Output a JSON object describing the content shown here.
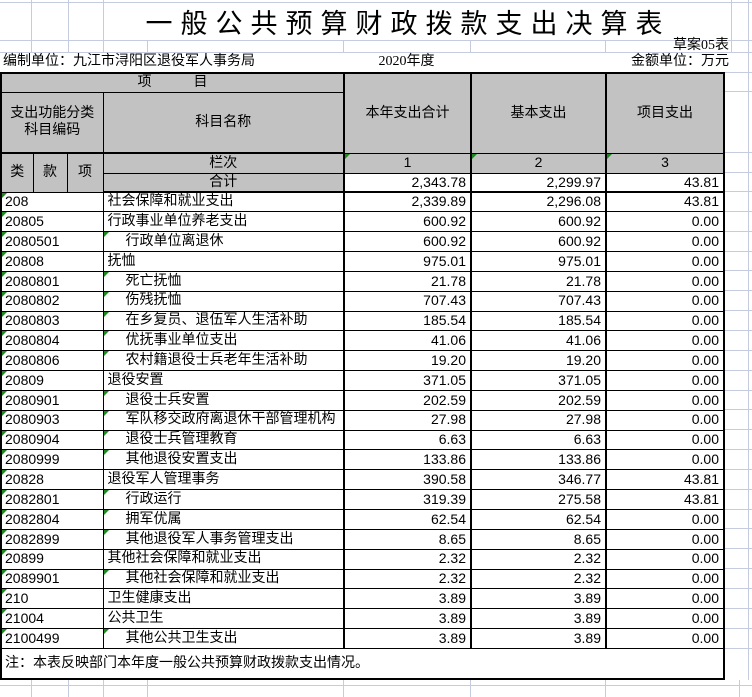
{
  "sheet": {
    "title": "一般公共预算财政拨款支出决算表",
    "draft_label": "草案05表",
    "prepared_by": "编制单位：九江市浔阳区退役军人事务局",
    "year": "2020年度",
    "amount_unit": "金额单位：万元",
    "note": "注：本表反映部门本年度一般公共预算财政拨款支出情况。"
  },
  "header": {
    "project": "项　　　目",
    "code_group": "支出功能分类\n科目编码",
    "subject": "科目名称",
    "col_total": "本年支出合计",
    "col_basic": "基本支出",
    "col_project": "项目支出",
    "cls": "类",
    "section": "款",
    "item": "项",
    "lanci": "栏次",
    "col_nums": [
      "1",
      "2",
      "3"
    ]
  },
  "total_row": {
    "label": "合计",
    "values": [
      "2,343.78",
      "2,299.97",
      "43.81"
    ]
  },
  "rows": [
    {
      "code": "208",
      "name": "社会保障和就业支出",
      "indent": false,
      "values": [
        "2,339.89",
        "2,296.08",
        "43.81"
      ]
    },
    {
      "code": "20805",
      "name": "行政事业单位养老支出",
      "indent": false,
      "values": [
        "600.92",
        "600.92",
        "0.00"
      ]
    },
    {
      "code": "2080501",
      "name": "行政单位离退休",
      "indent": true,
      "values": [
        "600.92",
        "600.92",
        "0.00"
      ]
    },
    {
      "code": "20808",
      "name": "抚恤",
      "indent": false,
      "values": [
        "975.01",
        "975.01",
        "0.00"
      ]
    },
    {
      "code": "2080801",
      "name": "死亡抚恤",
      "indent": true,
      "values": [
        "21.78",
        "21.78",
        "0.00"
      ]
    },
    {
      "code": "2080802",
      "name": "伤残抚恤",
      "indent": true,
      "values": [
        "707.43",
        "707.43",
        "0.00"
      ]
    },
    {
      "code": "2080803",
      "name": "在乡复员、退伍军人生活补助",
      "indent": true,
      "values": [
        "185.54",
        "185.54",
        "0.00"
      ]
    },
    {
      "code": "2080804",
      "name": "优抚事业单位支出",
      "indent": true,
      "values": [
        "41.06",
        "41.06",
        "0.00"
      ]
    },
    {
      "code": "2080806",
      "name": "农村籍退役士兵老年生活补助",
      "indent": true,
      "values": [
        "19.20",
        "19.20",
        "0.00"
      ]
    },
    {
      "code": "20809",
      "name": "退役安置",
      "indent": false,
      "values": [
        "371.05",
        "371.05",
        "0.00"
      ]
    },
    {
      "code": "2080901",
      "name": "退役士兵安置",
      "indent": true,
      "values": [
        "202.59",
        "202.59",
        "0.00"
      ]
    },
    {
      "code": "2080903",
      "name": "军队移交政府离退休干部管理机构",
      "indent": true,
      "values": [
        "27.98",
        "27.98",
        "0.00"
      ]
    },
    {
      "code": "2080904",
      "name": "退役士兵管理教育",
      "indent": true,
      "values": [
        "6.63",
        "6.63",
        "0.00"
      ]
    },
    {
      "code": "2080999",
      "name": "其他退役安置支出",
      "indent": true,
      "values": [
        "133.86",
        "133.86",
        "0.00"
      ]
    },
    {
      "code": "20828",
      "name": "退役军人管理事务",
      "indent": false,
      "values": [
        "390.58",
        "346.77",
        "43.81"
      ]
    },
    {
      "code": "2082801",
      "name": "行政运行",
      "indent": true,
      "values": [
        "319.39",
        "275.58",
        "43.81"
      ]
    },
    {
      "code": "2082804",
      "name": "拥军优属",
      "indent": true,
      "values": [
        "62.54",
        "62.54",
        "0.00"
      ]
    },
    {
      "code": "2082899",
      "name": "其他退役军人事务管理支出",
      "indent": true,
      "values": [
        "8.65",
        "8.65",
        "0.00"
      ]
    },
    {
      "code": "20899",
      "name": "其他社会保障和就业支出",
      "indent": false,
      "values": [
        "2.32",
        "2.32",
        "0.00"
      ]
    },
    {
      "code": "2089901",
      "name": "其他社会保障和就业支出",
      "indent": true,
      "values": [
        "2.32",
        "2.32",
        "0.00"
      ]
    },
    {
      "code": "210",
      "name": "卫生健康支出",
      "indent": false,
      "values": [
        "3.89",
        "3.89",
        "0.00"
      ]
    },
    {
      "code": "21004",
      "name": "公共卫生",
      "indent": false,
      "values": [
        "3.89",
        "3.89",
        "0.00"
      ]
    },
    {
      "code": "2100499",
      "name": "其他公共卫生支出",
      "indent": true,
      "values": [
        "3.89",
        "3.89",
        "0.00"
      ]
    }
  ],
  "colors": {
    "header_bg": "#c2c2c2",
    "gridline": "#c5cce0",
    "indicator_green": "#1e8a1e",
    "border": "#000000"
  }
}
